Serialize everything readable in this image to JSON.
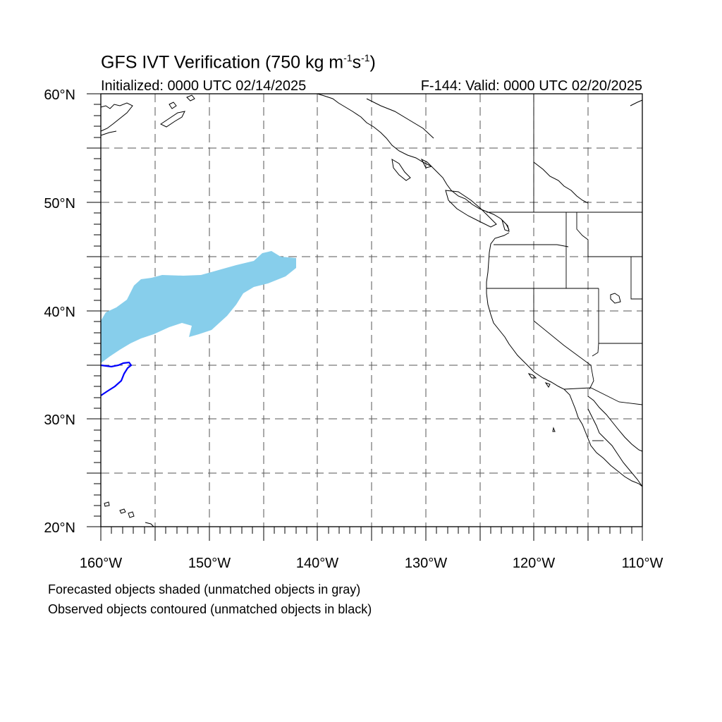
{
  "title_main": "GFS IVT Verification (750 kg m",
  "title_sup1": "-1",
  "title_mid": "s",
  "title_sup2": "-1",
  "title_end": ")",
  "initialized": "Initialized: 0000 UTC 02/14/2025",
  "valid": "F-144: Valid: 0000 UTC 02/20/2025",
  "footnote_forecast": "Forecasted objects shaded (unmatched objects in gray)",
  "footnote_observed": "Observed objects contoured (unmatched objects in black)",
  "map": {
    "lon_range": [
      -160,
      -110
    ],
    "lat_range": [
      20,
      60
    ],
    "lat_labels": [
      "20°N",
      "30°N",
      "40°N",
      "50°N",
      "60°N"
    ],
    "lon_labels": [
      "160°W",
      "150°W",
      "140°W",
      "130°W",
      "120°W",
      "110°W"
    ],
    "gridlines": "dashed every 5°",
    "forecast_fill_color": "#87ceeb",
    "observed_contour_color": "#0000ff",
    "coastline_color": "#000000"
  }
}
